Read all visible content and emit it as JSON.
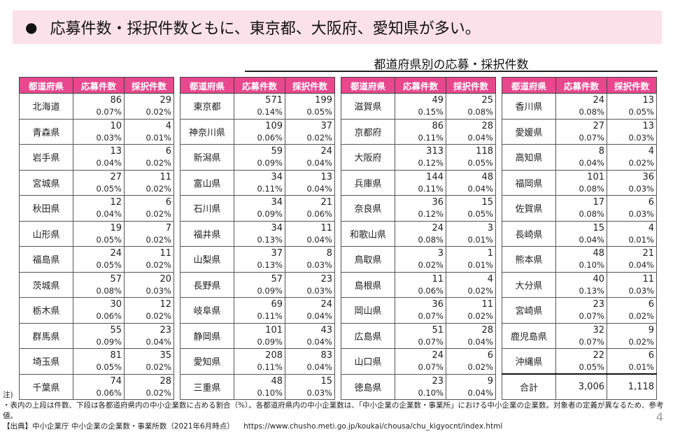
{
  "banner": {
    "text": "応募件数・採択件数ともに、東京都、大阪府、愛知県が多い。"
  },
  "title": "都道府県別の応募・採択件数",
  "headers": [
    "都道府県",
    "応募件数",
    "採択件数"
  ],
  "tables": [
    {
      "rows": [
        {
          "name": "北海道",
          "apply": "86",
          "apply_pct": "0.07%",
          "adopt": "29",
          "adopt_pct": "0.02%"
        },
        {
          "name": "青森県",
          "apply": "10",
          "apply_pct": "0.03%",
          "adopt": "4",
          "adopt_pct": "0.01%"
        },
        {
          "name": "岩手県",
          "apply": "13",
          "apply_pct": "0.04%",
          "adopt": "6",
          "adopt_pct": "0.02%"
        },
        {
          "name": "宮城県",
          "apply": "27",
          "apply_pct": "0.05%",
          "adopt": "11",
          "adopt_pct": "0.02%"
        },
        {
          "name": "秋田県",
          "apply": "12",
          "apply_pct": "0.04%",
          "adopt": "6",
          "adopt_pct": "0.02%"
        },
        {
          "name": "山形県",
          "apply": "19",
          "apply_pct": "0.05%",
          "adopt": "7",
          "adopt_pct": "0.02%"
        },
        {
          "name": "福島県",
          "apply": "24",
          "apply_pct": "0.05%",
          "adopt": "11",
          "adopt_pct": "0.02%"
        },
        {
          "name": "茨城県",
          "apply": "57",
          "apply_pct": "0.08%",
          "adopt": "20",
          "adopt_pct": "0.03%"
        },
        {
          "name": "栃木県",
          "apply": "30",
          "apply_pct": "0.06%",
          "adopt": "12",
          "adopt_pct": "0.02%"
        },
        {
          "name": "群馬県",
          "apply": "55",
          "apply_pct": "0.09%",
          "adopt": "23",
          "adopt_pct": "0.04%"
        },
        {
          "name": "埼玉県",
          "apply": "81",
          "apply_pct": "0.05%",
          "adopt": "35",
          "adopt_pct": "0.02%"
        },
        {
          "name": "千葉県",
          "apply": "74",
          "apply_pct": "0.06%",
          "adopt": "28",
          "adopt_pct": "0.02%"
        }
      ]
    },
    {
      "rows": [
        {
          "name": "東京都",
          "apply": "571",
          "apply_pct": "0.14%",
          "adopt": "199",
          "adopt_pct": "0.05%"
        },
        {
          "name": "神奈川県",
          "apply": "109",
          "apply_pct": "0.06%",
          "adopt": "37",
          "adopt_pct": "0.02%"
        },
        {
          "name": "新潟県",
          "apply": "59",
          "apply_pct": "0.09%",
          "adopt": "24",
          "adopt_pct": "0.04%"
        },
        {
          "name": "富山県",
          "apply": "34",
          "apply_pct": "0.11%",
          "adopt": "13",
          "adopt_pct": "0.04%"
        },
        {
          "name": "石川県",
          "apply": "34",
          "apply_pct": "0.09%",
          "adopt": "21",
          "adopt_pct": "0.06%"
        },
        {
          "name": "福井県",
          "apply": "34",
          "apply_pct": "0.13%",
          "adopt": "11",
          "adopt_pct": "0.04%"
        },
        {
          "name": "山梨県",
          "apply": "37",
          "apply_pct": "0.13%",
          "adopt": "8",
          "adopt_pct": "0.03%"
        },
        {
          "name": "長野県",
          "apply": "57",
          "apply_pct": "0.09%",
          "adopt": "23",
          "adopt_pct": "0.03%"
        },
        {
          "name": "岐阜県",
          "apply": "69",
          "apply_pct": "0.11%",
          "adopt": "24",
          "adopt_pct": "0.04%"
        },
        {
          "name": "静岡県",
          "apply": "101",
          "apply_pct": "0.09%",
          "adopt": "43",
          "adopt_pct": "0.04%"
        },
        {
          "name": "愛知県",
          "apply": "208",
          "apply_pct": "0.11%",
          "adopt": "83",
          "adopt_pct": "0.04%"
        },
        {
          "name": "三重県",
          "apply": "48",
          "apply_pct": "0.10%",
          "adopt": "15",
          "adopt_pct": "0.03%"
        }
      ]
    },
    {
      "rows": [
        {
          "name": "滋賀県",
          "apply": "49",
          "apply_pct": "0.15%",
          "adopt": "25",
          "adopt_pct": "0.08%"
        },
        {
          "name": "京都府",
          "apply": "86",
          "apply_pct": "0.11%",
          "adopt": "28",
          "adopt_pct": "0.04%"
        },
        {
          "name": "大阪府",
          "apply": "313",
          "apply_pct": "0.12%",
          "adopt": "118",
          "adopt_pct": "0.05%"
        },
        {
          "name": "兵庫県",
          "apply": "144",
          "apply_pct": "0.11%",
          "adopt": "48",
          "adopt_pct": "0.04%"
        },
        {
          "name": "奈良県",
          "apply": "36",
          "apply_pct": "0.12%",
          "adopt": "15",
          "adopt_pct": "0.05%"
        },
        {
          "name": "和歌山県",
          "apply": "24",
          "apply_pct": "0.08%",
          "adopt": "3",
          "adopt_pct": "0.01%"
        },
        {
          "name": "鳥取県",
          "apply": "3",
          "apply_pct": "0.02%",
          "adopt": "1",
          "adopt_pct": "0.01%"
        },
        {
          "name": "島根県",
          "apply": "11",
          "apply_pct": "0.06%",
          "adopt": "4",
          "adopt_pct": "0.02%"
        },
        {
          "name": "岡山県",
          "apply": "36",
          "apply_pct": "0.07%",
          "adopt": "11",
          "adopt_pct": "0.02%"
        },
        {
          "name": "広島県",
          "apply": "51",
          "apply_pct": "0.07%",
          "adopt": "28",
          "adopt_pct": "0.04%"
        },
        {
          "name": "山口県",
          "apply": "24",
          "apply_pct": "0.07%",
          "adopt": "6",
          "adopt_pct": "0.02%"
        },
        {
          "name": "徳島県",
          "apply": "23",
          "apply_pct": "0.10%",
          "adopt": "9",
          "adopt_pct": "0.04%"
        }
      ]
    },
    {
      "rows": [
        {
          "name": "香川県",
          "apply": "24",
          "apply_pct": "0.08%",
          "adopt": "13",
          "adopt_pct": "0.05%"
        },
        {
          "name": "愛媛県",
          "apply": "27",
          "apply_pct": "0.07%",
          "adopt": "13",
          "adopt_pct": "0.03%"
        },
        {
          "name": "高知県",
          "apply": "8",
          "apply_pct": "0.04%",
          "adopt": "4",
          "adopt_pct": "0.02%"
        },
        {
          "name": "福岡県",
          "apply": "101",
          "apply_pct": "0.08%",
          "adopt": "36",
          "adopt_pct": "0.03%"
        },
        {
          "name": "佐賀県",
          "apply": "17",
          "apply_pct": "0.08%",
          "adopt": "6",
          "adopt_pct": "0.03%"
        },
        {
          "name": "長崎県",
          "apply": "15",
          "apply_pct": "0.04%",
          "adopt": "4",
          "adopt_pct": "0.01%"
        },
        {
          "name": "熊本県",
          "apply": "48",
          "apply_pct": "0.10%",
          "adopt": "21",
          "adopt_pct": "0.04%"
        },
        {
          "name": "大分県",
          "apply": "40",
          "apply_pct": "0.13%",
          "adopt": "11",
          "adopt_pct": "0.03%"
        },
        {
          "name": "宮崎県",
          "apply": "23",
          "apply_pct": "0.07%",
          "adopt": "6",
          "adopt_pct": "0.02%"
        },
        {
          "name": "鹿児島県",
          "apply": "32",
          "apply_pct": "0.07%",
          "adopt": "9",
          "adopt_pct": "0.02%"
        },
        {
          "name": "沖縄県",
          "apply": "22",
          "apply_pct": "0.05%",
          "adopt": "6",
          "adopt_pct": "0.01%"
        }
      ],
      "total": {
        "name": "合計",
        "apply": "3,006",
        "adopt": "1,118"
      }
    }
  ],
  "notes": {
    "label": "注)",
    "bullet": "・表内の上段は件数、下段は各都道府県内の中小企業数に占める割合（%）。各都道府県内の中小企業数は、「中小企業の企業数・事業所」における中小企業の企業数。対象者の定義が異なるため、参考値。",
    "source": "【出典】中小企業庁 中小企業の企業数・事業所数（2021年6月時点）",
    "url": "https://www.chusho.meti.go.jp/koukai/chousa/chu_kigyocnt/index.html"
  },
  "page_number": "4"
}
